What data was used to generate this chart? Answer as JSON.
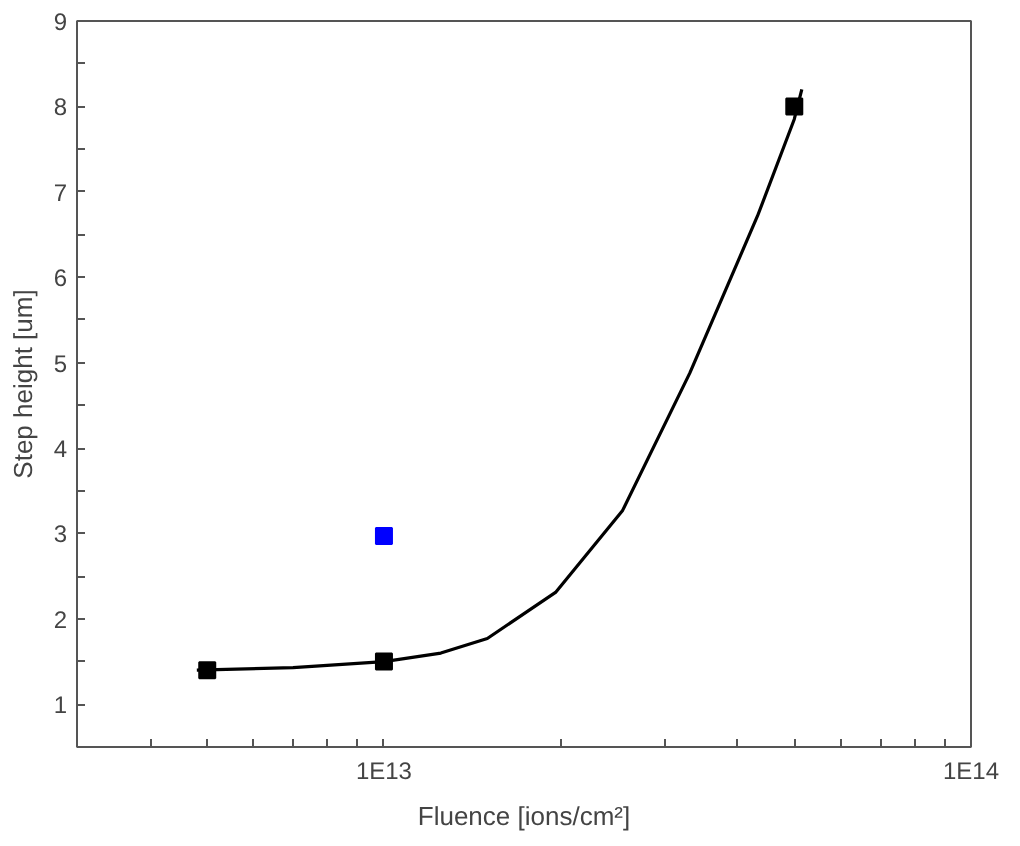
{
  "chart_data": {
    "type": "scatter",
    "xlabel": "Fluence [ions/cm²]",
    "ylabel": "Step height [um]",
    "log": "x",
    "grid": false,
    "marker": "square",
    "xlim": [
      3000000000000.0,
      100000000000000.0
    ],
    "ylim": [
      0.5,
      9
    ],
    "xticks": [
      {
        "value": 4000000000000.0,
        "label": null
      },
      {
        "value": 5000000000000.0,
        "label": null
      },
      {
        "value": 6000000000000.0,
        "label": null
      },
      {
        "value": 7000000000000.0,
        "label": null
      },
      {
        "value": 8000000000000.0,
        "label": null
      },
      {
        "value": 9000000000000.0,
        "label": null
      },
      {
        "value": 10000000000000.0,
        "label": "1E13"
      },
      {
        "value": 20000000000000.0,
        "label": null
      },
      {
        "value": 30000000000000.0,
        "label": null
      },
      {
        "value": 40000000000000.0,
        "label": null
      },
      {
        "value": 50000000000000.0,
        "label": null
      },
      {
        "value": 60000000000000.0,
        "label": null
      },
      {
        "value": 70000000000000.0,
        "label": null
      },
      {
        "value": 80000000000000.0,
        "label": null
      },
      {
        "value": 90000000000000.0,
        "label": null
      },
      {
        "value": 100000000000000.0,
        "label": "1E14"
      }
    ],
    "yticks": [
      {
        "value": 0.5,
        "label": null
      },
      1,
      {
        "value": 1.5,
        "label": null
      },
      2,
      {
        "value": 2.5,
        "label": null
      },
      3,
      {
        "value": 3.5,
        "label": null
      },
      4,
      {
        "value": 4.5,
        "label": null
      },
      5,
      {
        "value": 5.5,
        "label": null
      },
      6,
      {
        "value": 6.5,
        "label": null
      },
      7,
      {
        "value": 7.5,
        "label": null
      },
      8,
      {
        "value": 8.5,
        "label": null
      },
      9
    ],
    "series": [
      {
        "type": "line",
        "color": "#000000",
        "marker": "none",
        "x": [
          4800000000000.0,
          7000000000000.0,
          10000000000000.0,
          12500000000000.0,
          15000000000000.0,
          19600000000000.0,
          25500000000000.0,
          33200000000000.0,
          43300000000000.0,
          50000000000000.0,
          51500000000000.0
        ],
        "values": [
          1.4,
          1.43,
          1.5,
          1.6,
          1.77,
          2.31,
          3.27,
          4.88,
          6.72,
          7.85,
          8.2
        ]
      },
      {
        "color": "#000000",
        "x": [
          5000000000000.0,
          10000000000000.0,
          50000000000000.0
        ],
        "values": [
          1.4,
          1.5,
          8.0
        ]
      },
      {
        "color": "#0000ff",
        "x": [
          10000000000000.0
        ],
        "values": [
          2.97
        ]
      }
    ]
  }
}
